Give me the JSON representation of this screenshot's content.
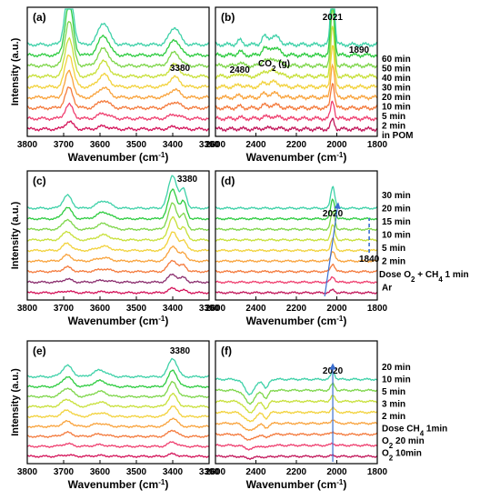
{
  "chart_data": [
    {
      "type": "line",
      "panel_label": "(a)",
      "xlabel_main": "Wavenumber (cm",
      "xlabel_sup": "-1",
      "xlabel_end": ")",
      "ylabel": "Intensity (a.u.)",
      "xlim": [
        3800,
        3300
      ],
      "x_ticks": [
        "3800",
        "3700",
        "3600",
        "3500",
        "3400",
        "3300"
      ],
      "tick_values": [
        3800,
        3700,
        3600,
        3500,
        3400,
        3300
      ],
      "annotations": [
        {
          "text": "3380",
          "x": 3380
        }
      ],
      "peaks": [
        {
          "x": 3685,
          "w": 11,
          "h": 1.0
        },
        {
          "x": 3590,
          "w": 15,
          "h": 0.38
        },
        {
          "x": 3395,
          "w": 14,
          "h": 0.3
        }
      ],
      "series_colors": [
        "#d4145a",
        "#ef4070",
        "#f47a3c",
        "#f9a33c",
        "#f2d23c",
        "#c8e03a",
        "#7ed64a",
        "#2ecc40",
        "#3ed1a8"
      ],
      "legend": []
    },
    {
      "type": "line",
      "panel_label": "(b)",
      "xlabel_main": "Wavenumber (cm",
      "xlabel_sup": "-1",
      "xlabel_end": ")",
      "ylabel": "",
      "xlim": [
        2600,
        1800
      ],
      "x_ticks": [
        "2600",
        "2400",
        "2200",
        "2000",
        "1800"
      ],
      "tick_values": [
        2600,
        2400,
        2200,
        2000,
        1800
      ],
      "annotations": [
        {
          "text": "2480",
          "x": 2480
        },
        {
          "text": "2021",
          "x": 2021
        },
        {
          "text": "1890",
          "x": 1890
        }
      ],
      "co2_label": {
        "main": "CO",
        "sub": "2",
        "end": " (g)"
      },
      "peaks": [
        {
          "x": 2021,
          "w": 9,
          "h": 1.0
        },
        {
          "x": 2310,
          "w": 25,
          "h": 0.12
        },
        {
          "x": 2360,
          "w": 12,
          "h": 0.1
        },
        {
          "x": 2480,
          "w": 12,
          "h": 0.06
        }
      ],
      "series_colors": [
        "#c2185b",
        "#ef4070",
        "#f47a3c",
        "#f9a33c",
        "#f2d23c",
        "#c8e03a",
        "#7ed64a",
        "#2ecc40",
        "#3ed1a8"
      ],
      "legend": [
        "60 min",
        "50 min",
        "40 min",
        "30 min",
        "20 min",
        "10 min",
        "5 min",
        "2 min",
        "in POM"
      ]
    },
    {
      "type": "line",
      "panel_label": "(c)",
      "xlabel_main": "Wavenumber (cm",
      "xlabel_sup": "-1",
      "xlabel_end": ")",
      "ylabel": "Intensity (a.u.)",
      "xlim": [
        3800,
        3300
      ],
      "x_ticks": [
        "3800",
        "3700",
        "3600",
        "3500",
        "3400",
        "3300"
      ],
      "tick_values": [
        3800,
        3700,
        3600,
        3500,
        3400,
        3300
      ],
      "annotations": [
        {
          "text": "3380",
          "x": 3380
        }
      ],
      "peaks": [
        {
          "x": 3690,
          "w": 12,
          "h": 0.35
        },
        {
          "x": 3590,
          "w": 18,
          "h": 0.2
        },
        {
          "x": 3400,
          "w": 12,
          "h": 0.9
        },
        {
          "x": 3370,
          "w": 8,
          "h": 0.5
        }
      ],
      "series_colors": [
        "#d4145a",
        "#8b2f6f",
        "#f47a3c",
        "#f9a33c",
        "#f2d23c",
        "#c8e03a",
        "#7ed64a",
        "#2ecc40",
        "#3ed1a8"
      ],
      "legend": []
    },
    {
      "type": "line",
      "panel_label": "(d)",
      "xlabel_main": "Wavenumber (cm",
      "xlabel_sup": "-1",
      "xlabel_end": ")",
      "ylabel": "",
      "xlim": [
        2600,
        1800
      ],
      "x_ticks": [
        "2600",
        "2400",
        "2200",
        "2000",
        "1800"
      ],
      "tick_values": [
        2600,
        2400,
        2200,
        2000,
        1800
      ],
      "annotations": [
        {
          "text": "2020",
          "x": 2020
        },
        {
          "text": "1840",
          "x": 1840
        }
      ],
      "peaks": [
        {
          "x": 2020,
          "w": 10,
          "h": 0.6
        }
      ],
      "series_colors": [
        "#c2185b",
        "#ef4070",
        "#f47a3c",
        "#f9a33c",
        "#f2d23c",
        "#c8e03a",
        "#7ed64a",
        "#2ecc40",
        "#3ed1a8"
      ],
      "legend": [
        "30 min",
        "20 min",
        "15 min",
        "10 min",
        "5 min",
        "2 min",
        "Dose O",
        "Ar"
      ],
      "dose_label": {
        "main": "Dose O",
        "sub": "2",
        "end": " + CH",
        "sub2": "4",
        "tail": " 1 min"
      }
    },
    {
      "type": "line",
      "panel_label": "(e)",
      "xlabel_main": "Wavenumber (cm",
      "xlabel_sup": "-1",
      "xlabel_end": ")",
      "ylabel": "Intensity (a.u.)",
      "xlim": [
        3800,
        3300
      ],
      "x_ticks": [
        "3800",
        "3700",
        "3600",
        "3500",
        "3400",
        "3300"
      ],
      "tick_values": [
        3800,
        3700,
        3600,
        3500,
        3400,
        3300
      ],
      "annotations": [
        {
          "text": "3380",
          "x": 3380
        }
      ],
      "peaks": [
        {
          "x": 3690,
          "w": 14,
          "h": 0.3
        },
        {
          "x": 3600,
          "w": 18,
          "h": 0.18
        },
        {
          "x": 3400,
          "w": 12,
          "h": 0.5
        }
      ],
      "series_colors": [
        "#d4145a",
        "#ef4070",
        "#f47a3c",
        "#f9a33c",
        "#f2d23c",
        "#c8e03a",
        "#7ed64a",
        "#2ecc40",
        "#3ed1a8"
      ],
      "legend": []
    },
    {
      "type": "line",
      "panel_label": "(f)",
      "xlabel_main": "Wavenumber (cm",
      "xlabel_sup": "-1",
      "xlabel_end": ")",
      "ylabel": "",
      "xlim": [
        2600,
        1800
      ],
      "x_ticks": [
        "2600",
        "2400",
        "2200",
        "2000",
        "1800"
      ],
      "tick_values": [
        2600,
        2400,
        2200,
        2000,
        1800
      ],
      "annotations": [
        {
          "text": "2020",
          "x": 2020
        }
      ],
      "peaks": [
        {
          "x": 2430,
          "w": 25,
          "h": -0.4
        },
        {
          "x": 2350,
          "w": 12,
          "h": -0.25
        },
        {
          "x": 2020,
          "w": 10,
          "h": 0.2
        }
      ],
      "series_colors": [
        "#c2185b",
        "#ef4070",
        "#f47a3c",
        "#f9a33c",
        "#f2d23c",
        "#c8e03a",
        "#7ed64a",
        "#3ed1a8"
      ],
      "legend": [
        "20 min",
        "10 min",
        "5 min",
        "3 min",
        "2 min",
        "Dose CH",
        "O",
        "O"
      ],
      "special_legend": [
        {
          "main": "Dose CH",
          "sub": "4",
          "end": " 1min"
        },
        {
          "main": "O",
          "sub": "2",
          "end": " 20 min"
        },
        {
          "main": "O",
          "sub": "2",
          "end": " 10min"
        }
      ]
    }
  ]
}
